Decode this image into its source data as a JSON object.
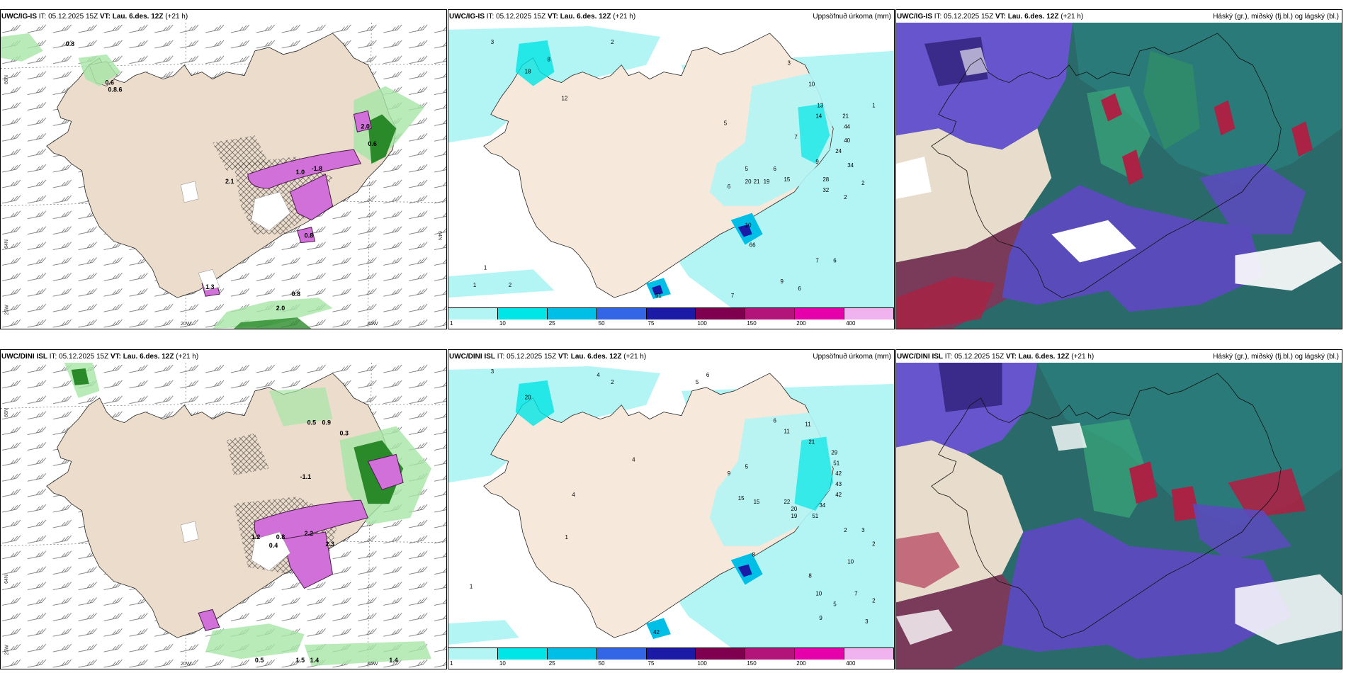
{
  "rows": [
    {
      "model": "UWC/IG-IS",
      "it_label": "IT:",
      "it_value": "05.12.2025 15Z",
      "vt_label": "VT:",
      "vt_value": "Lau. 6.des. 12Z",
      "lead": "(+21 h)"
    },
    {
      "model": "UWC/DINI ISL",
      "it_label": "IT:",
      "it_value": "05.12.2025 15Z",
      "vt_label": "VT:",
      "vt_value": "Lau. 6.des. 12Z",
      "lead": "(+21 h)"
    }
  ],
  "precip_title": "Uppsöfnuð úrkoma (mm)",
  "cloud_title": "Háský (gr.), miðský (fj.bl.) og lágský (bl.)",
  "axis_labels": {
    "lat66": "66N",
    "lat64": "64N",
    "lon20": "20W",
    "lon15": "15W",
    "lon25": "25W",
    "lat66r": "66N",
    "lat64r": "64N"
  },
  "colorbar": {
    "ticks": [
      "1",
      "10",
      "25",
      "50",
      "75",
      "100",
      "150",
      "200",
      "400"
    ],
    "colors": [
      "#b3f5f5",
      "#00e5e5",
      "#00bfe6",
      "#3366e6",
      "#1a1aa6",
      "#800050",
      "#b3147a",
      "#e600aa",
      "#f0b3f0"
    ]
  },
  "wind_values_top": [
    "0.8",
    "0.6",
    "0.8.6",
    "1.0",
    "2.1",
    "-1.8",
    "1.4",
    "2.0",
    "0.8",
    "2.1",
    "0.6",
    "1.3",
    "0.8",
    "2.0",
    "0.5"
  ],
  "wind_values_bottom": [
    "0.5",
    "0.9",
    "0.3",
    "1.2",
    "0.8",
    "-1.1",
    "2.2",
    "1.2",
    "2.3",
    "0.4",
    "0.5",
    "1.5",
    "1.4",
    "2.0"
  ],
  "precip_values_top": [
    "3",
    "2",
    "2",
    "2",
    "3",
    "3",
    "5",
    "5",
    "10",
    "10",
    "13",
    "14",
    "21",
    "44",
    "40",
    "24",
    "34",
    "28",
    "32",
    "20",
    "21",
    "19",
    "6",
    "9",
    "15",
    "10",
    "2",
    "4",
    "5",
    "7",
    "7",
    "6",
    "9",
    "6",
    "1",
    "1",
    "2",
    "8",
    "11",
    "12",
    "18",
    "8"
  ],
  "precip_values_bottom": [
    "3",
    "4",
    "5",
    "6",
    "2",
    "2",
    "1",
    "1",
    "6",
    "11",
    "21",
    "29",
    "51",
    "42",
    "43",
    "42",
    "34",
    "51",
    "22",
    "20",
    "19",
    "15",
    "15",
    "8",
    "9",
    "5",
    "4",
    "2",
    "3",
    "10",
    "8",
    "10",
    "9",
    "5",
    "7",
    "3",
    "2",
    "1",
    "4",
    "42",
    "20",
    "1"
  ]
}
